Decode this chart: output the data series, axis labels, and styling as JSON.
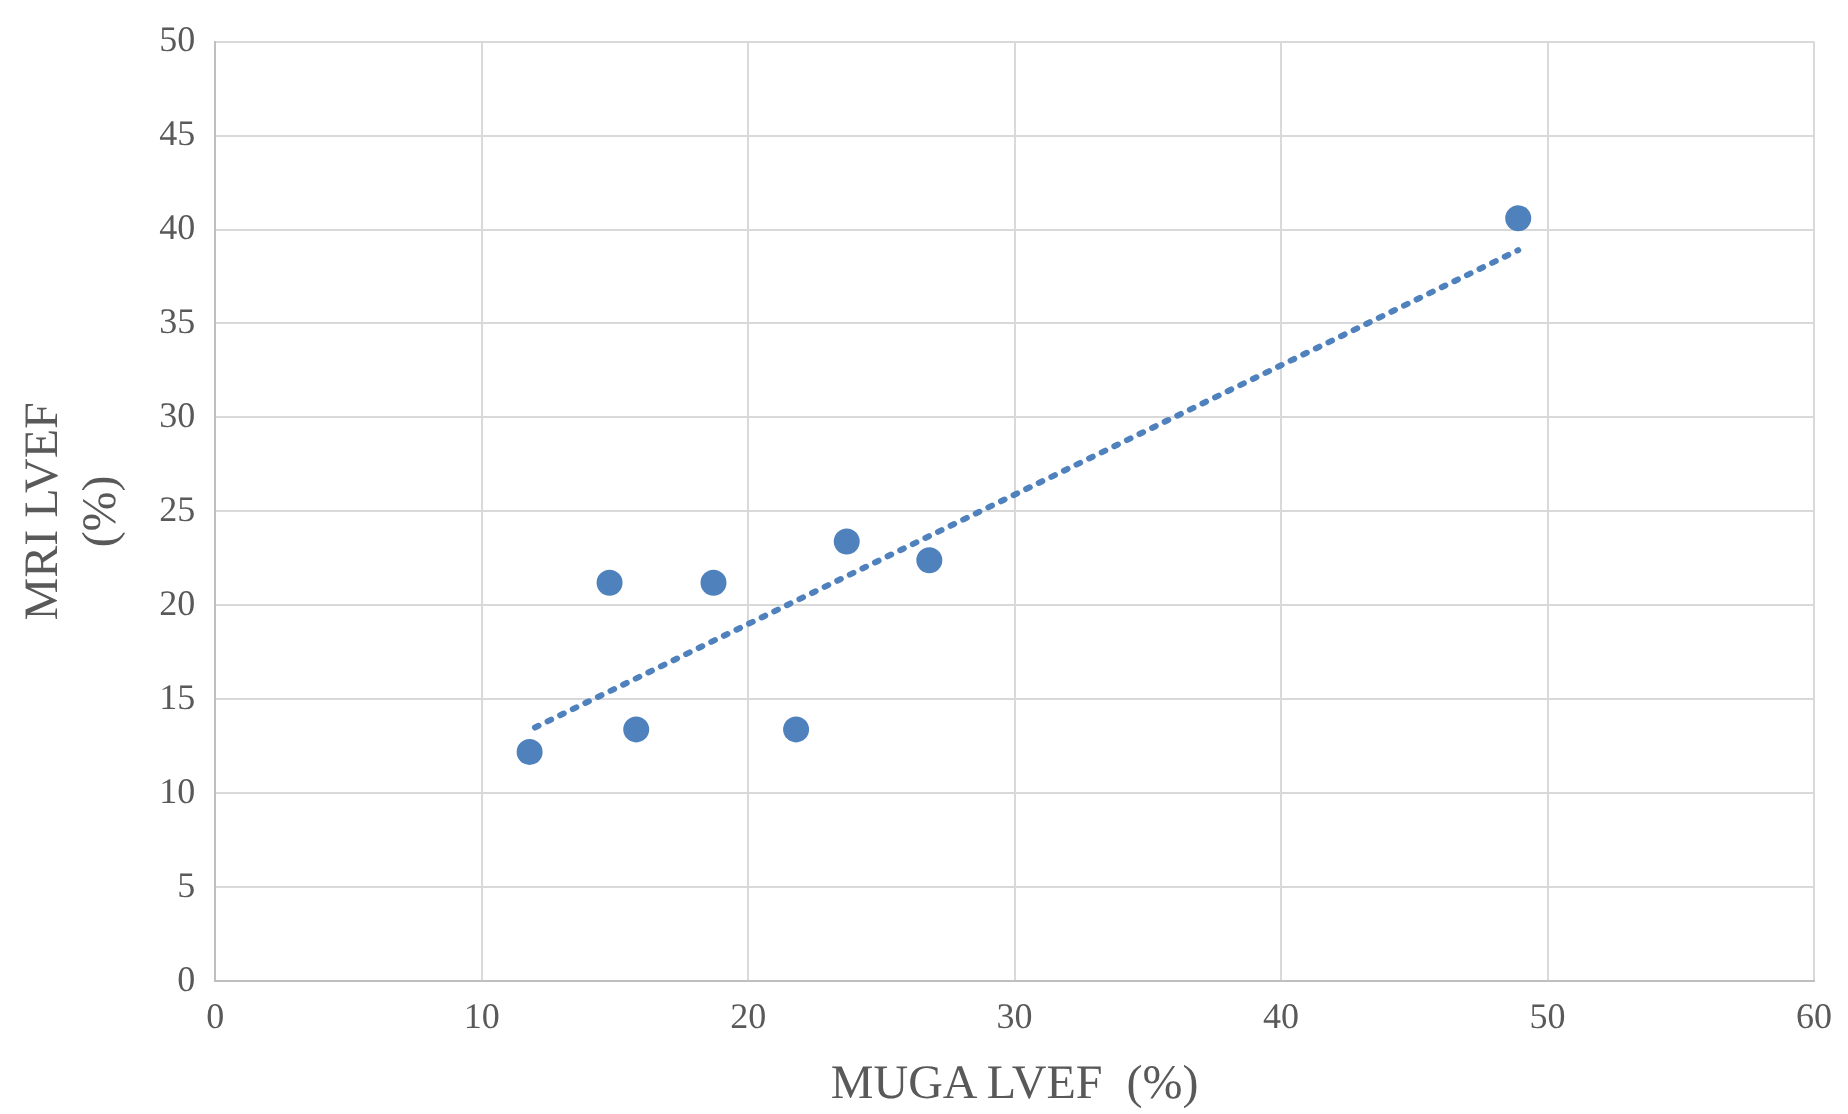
{
  "chart_data": {
    "type": "scatter",
    "xlabel": "MUGA LVEF  (%)",
    "ylabel": "MRI LVEF\n(%)",
    "xlim": [
      0,
      60
    ],
    "xticks": [
      0,
      10,
      20,
      30,
      40,
      50,
      60
    ],
    "ylim": [
      0,
      50
    ],
    "yticks": [
      0,
      5,
      10,
      15,
      20,
      25,
      30,
      35,
      40,
      45,
      50
    ],
    "grid": true,
    "marker": "circle",
    "series": [
      {
        "type": "scatter",
        "color": "#4f81bd",
        "x": [
          11.8,
          14.8,
          15.8,
          18.7,
          21.8,
          23.7,
          26.8,
          48.9
        ],
        "values": [
          12.2,
          21.2,
          13.4,
          21.2,
          13.4,
          23.4,
          22.4,
          40.6
        ]
      },
      {
        "type": "line",
        "color": "#4f81bd",
        "line_style": "dotted",
        "marker": "none",
        "x": [
          12.0,
          48.9
        ],
        "values": [
          13.5,
          38.9
        ]
      }
    ]
  }
}
